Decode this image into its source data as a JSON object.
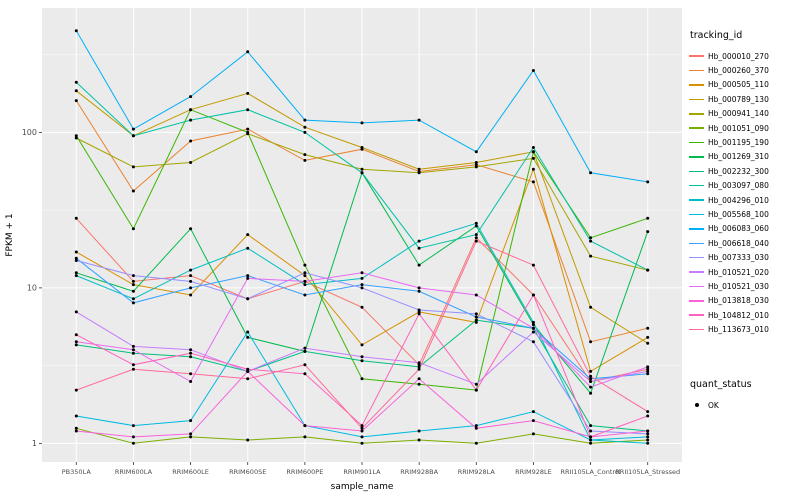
{
  "panel": {
    "bg": "#EBEBEB",
    "grid_major": "#FFFFFF",
    "grid_minor": "#F7F7F7",
    "point_color": "#000000",
    "tick_color": "#333333",
    "tick_label_color": "#4D4D4D",
    "axis_title_color": "#000000"
  },
  "chart_data": {
    "type": "line",
    "title": "",
    "xlabel": "sample_name",
    "ylabel": "FPKM + 1",
    "yscale": "log10",
    "ylim": [
      1,
      500
    ],
    "yticks": [
      1,
      10,
      100
    ],
    "grid": true,
    "legend": {
      "position": "right",
      "series_title": "tracking_id",
      "quant_title": "quant_status",
      "quant_label": "OK"
    },
    "categories": [
      "PB350LA",
      "RRIM600LA",
      "RRIM600LE",
      "RRIM600SE",
      "RRIM600PE",
      "RRIM901LA",
      "RRIM928BA",
      "RRIM928LA",
      "RRIM928LE",
      "RRII105LA_Control",
      "RRII105LA_Stressed"
    ],
    "series": [
      {
        "name": "Hb_000010_270",
        "color": "#F8766D",
        "values": [
          28,
          11,
          12,
          8.5,
          11,
          7.5,
          3.2,
          21,
          9,
          2.5,
          3.0
        ]
      },
      {
        "name": "Hb_000260_370",
        "color": "#EA8331",
        "values": [
          160,
          42,
          88,
          105,
          66,
          78,
          56,
          62,
          48,
          4.5,
          5.5
        ]
      },
      {
        "name": "Hb_000505_110",
        "color": "#D89000",
        "values": [
          17,
          10.5,
          9,
          22,
          12,
          4.3,
          7,
          6,
          58,
          2.9,
          4.8
        ]
      },
      {
        "name": "Hb_000789_130",
        "color": "#C09B00",
        "values": [
          185,
          95,
          140,
          178,
          108,
          80,
          58,
          64,
          75,
          7.5,
          4.4
        ]
      },
      {
        "name": "Hb_000941_140",
        "color": "#A3A500",
        "values": [
          92,
          60,
          64,
          98,
          72,
          58,
          55,
          60,
          68,
          16,
          13
        ]
      },
      {
        "name": "Hb_001051_090",
        "color": "#7CAE00",
        "values": [
          1.25,
          1.0,
          1.1,
          1.05,
          1.1,
          1.0,
          1.05,
          1.0,
          1.15,
          1.0,
          1.05
        ]
      },
      {
        "name": "Hb_001195_190",
        "color": "#39B600",
        "values": [
          95,
          24,
          140,
          100,
          14,
          2.6,
          2.4,
          2.2,
          75,
          21,
          28
        ]
      },
      {
        "name": "Hb_001269_310",
        "color": "#00BB4E",
        "values": [
          12.5,
          9.5,
          24,
          4.8,
          3.9,
          55,
          14,
          25,
          5.8,
          2.1,
          23
        ]
      },
      {
        "name": "Hb_002232_300",
        "color": "#00BF7D",
        "values": [
          4.3,
          3.8,
          3.6,
          2.9,
          3.9,
          3.4,
          3.1,
          6.2,
          5.5,
          1.3,
          1.2
        ]
      },
      {
        "name": "Hb_003097_080",
        "color": "#00C1A3",
        "values": [
          210,
          95,
          120,
          140,
          100,
          55,
          18,
          22,
          80,
          20,
          13
        ]
      },
      {
        "name": "Hb_004296_010",
        "color": "#00BFC4",
        "values": [
          12,
          8.5,
          13,
          18,
          10.5,
          11.5,
          20,
          26,
          6,
          1.05,
          1.0
        ]
      },
      {
        "name": "Hb_005568_100",
        "color": "#00BAE0",
        "values": [
          1.5,
          1.3,
          1.4,
          5.2,
          1.3,
          1.1,
          1.2,
          1.3,
          1.6,
          1.05,
          1.1
        ]
      },
      {
        "name": "Hb_006083_060",
        "color": "#00B0F6",
        "values": [
          450,
          105,
          170,
          330,
          120,
          115,
          120,
          75,
          250,
          55,
          48
        ]
      },
      {
        "name": "Hb_006618_040",
        "color": "#35A2FF",
        "values": [
          15.5,
          8,
          10,
          12,
          9,
          10.5,
          9.5,
          6.5,
          5.5,
          2.6,
          2.8
        ]
      },
      {
        "name": "Hb_007333_030",
        "color": "#9590FF",
        "values": [
          15,
          12,
          11,
          8.5,
          12.5,
          10,
          7.2,
          6.8,
          4.5,
          1.2,
          1.15
        ]
      },
      {
        "name": "Hb_010521_020",
        "color": "#C77CFF",
        "values": [
          7,
          4.2,
          4.0,
          2.9,
          4.1,
          3.6,
          3.3,
          2.4,
          5.2,
          2.5,
          2.9
        ]
      },
      {
        "name": "Hb_010521_030",
        "color": "#E76BF3",
        "values": [
          4.5,
          4.0,
          2.5,
          11.5,
          11,
          12.5,
          10,
          9,
          5.5,
          2.3,
          3.1
        ]
      },
      {
        "name": "Hb_013818_030",
        "color": "#FA62DB",
        "values": [
          1.2,
          1.1,
          1.15,
          2.9,
          1.3,
          1.2,
          2.6,
          1.25,
          1.4,
          1.1,
          1.2
        ]
      },
      {
        "name": "Hb_104812_010",
        "color": "#FF62BC",
        "values": [
          5,
          3.2,
          3.8,
          3.0,
          2.8,
          1.3,
          6.8,
          2.2,
          9,
          1.1,
          1.5
        ]
      },
      {
        "name": "Hb_113673_010",
        "color": "#FF6A98",
        "values": [
          2.2,
          3.0,
          2.8,
          2.6,
          3.2,
          1.25,
          3.0,
          20,
          14,
          2.7,
          1.6
        ]
      }
    ]
  }
}
